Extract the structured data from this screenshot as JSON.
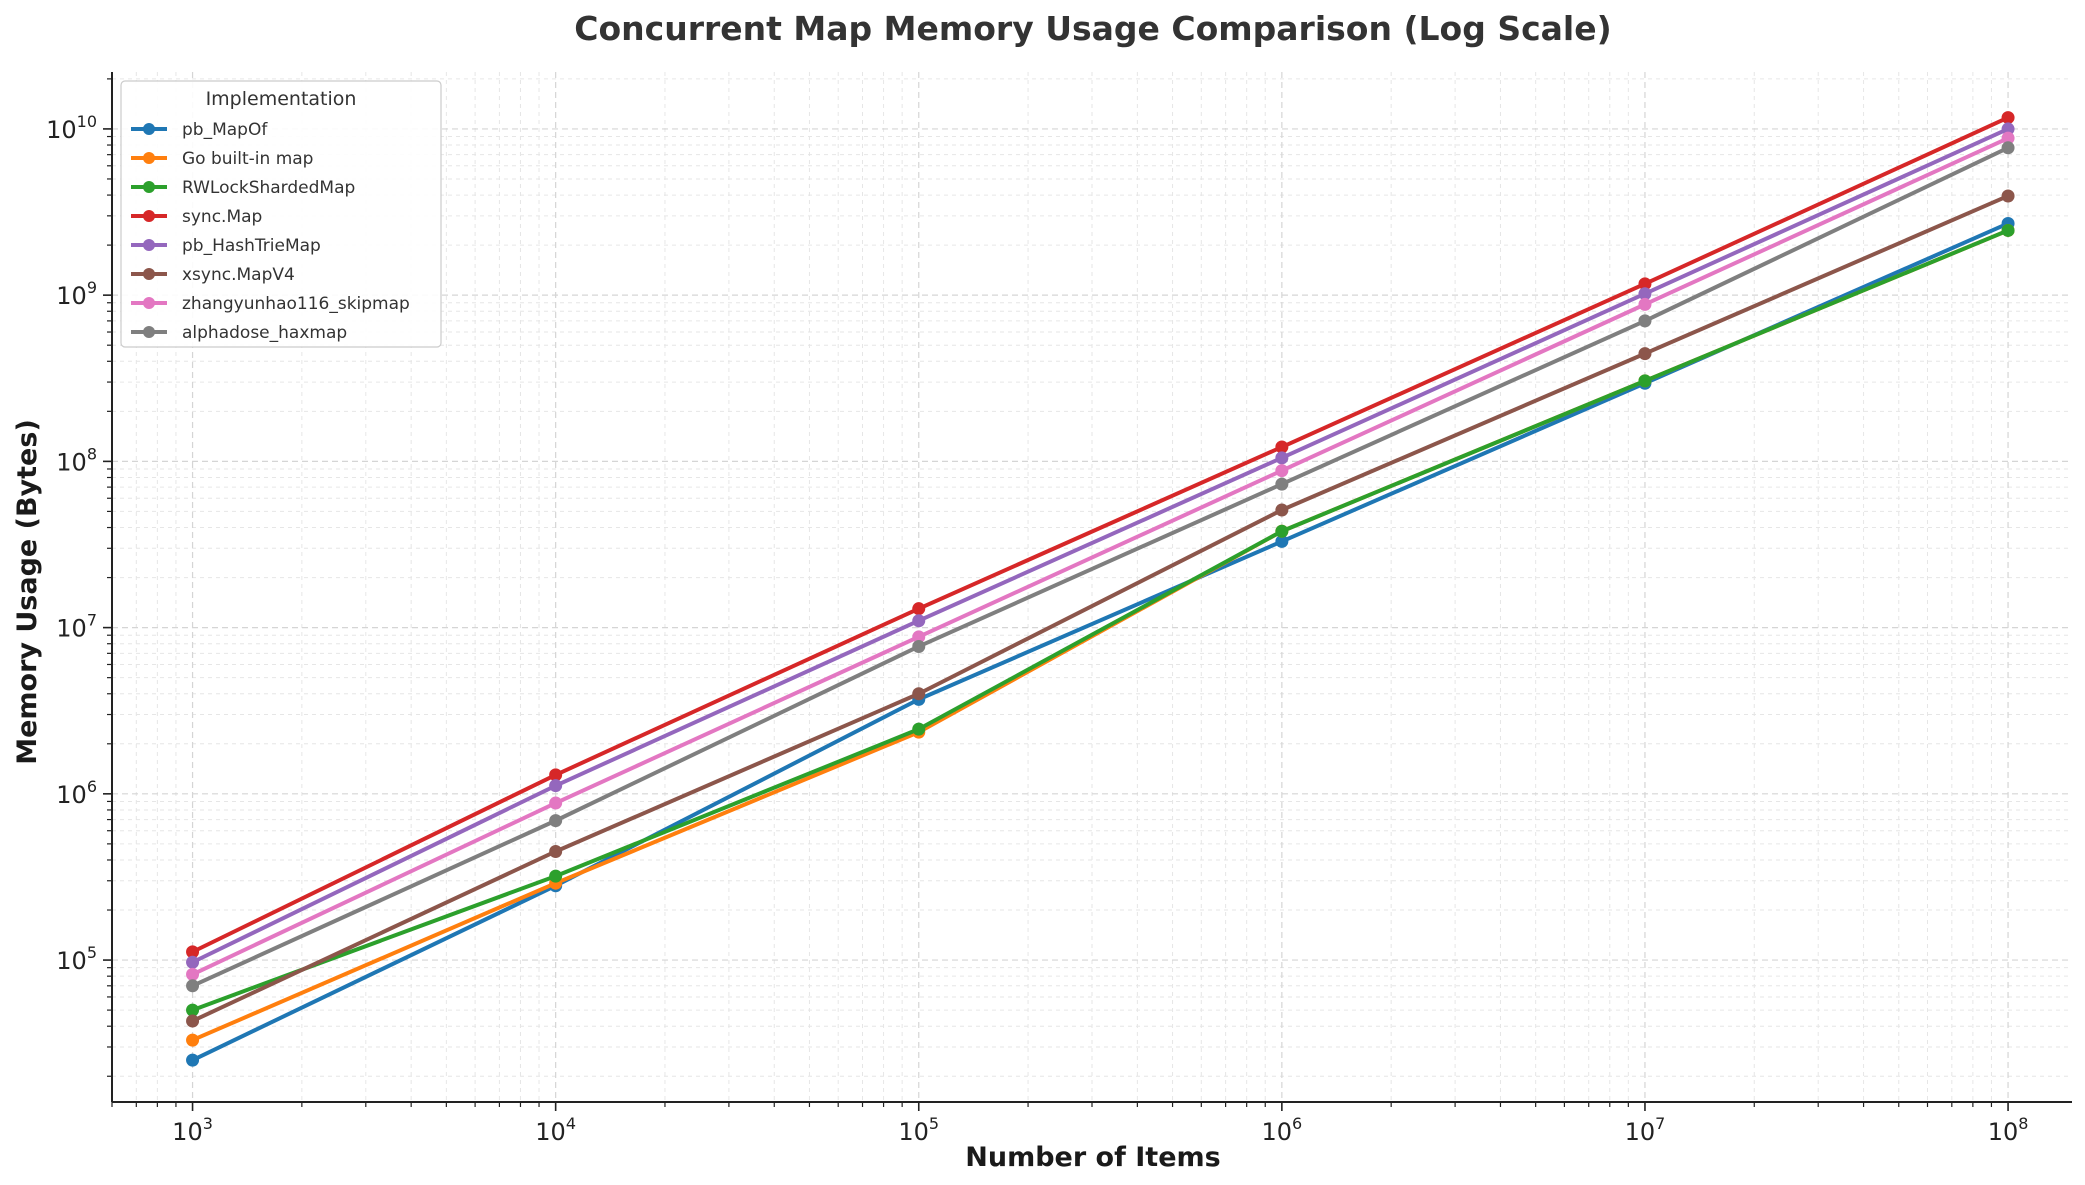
{
  "chart_data": {
    "type": "line",
    "title": "Concurrent Map Memory Usage Comparison (Log Scale)",
    "xlabel": "Number of Items",
    "ylabel": "Memory Usage (Bytes)",
    "x_scale": "log",
    "y_scale": "log",
    "xlim": [
      600,
      150000000
    ],
    "ylim": [
      14000,
      22000000000
    ],
    "x": [
      1000,
      10000,
      100000,
      1000000,
      10000000,
      100000000
    ],
    "x_ticks": [
      {
        "value": 1000,
        "base": "10",
        "exp": "3"
      },
      {
        "value": 10000,
        "base": "10",
        "exp": "4"
      },
      {
        "value": 100000,
        "base": "10",
        "exp": "5"
      },
      {
        "value": 1000000,
        "base": "10",
        "exp": "6"
      },
      {
        "value": 10000000,
        "base": "10",
        "exp": "7"
      },
      {
        "value": 100000000,
        "base": "10",
        "exp": "8"
      }
    ],
    "y_ticks": [
      {
        "value": 100000,
        "base": "10",
        "exp": "5"
      },
      {
        "value": 1000000,
        "base": "10",
        "exp": "6"
      },
      {
        "value": 10000000,
        "base": "10",
        "exp": "7"
      },
      {
        "value": 100000000,
        "base": "10",
        "exp": "8"
      },
      {
        "value": 1000000000,
        "base": "10",
        "exp": "9"
      },
      {
        "value": 10000000000,
        "base": "10",
        "exp": "10"
      }
    ],
    "grid": true,
    "legend": {
      "title": "Implementation",
      "position": "top-left"
    },
    "series": [
      {
        "name": "pb_MapOf",
        "color": "#1f77b4",
        "values": [
          25000,
          280000,
          3700000,
          33000000,
          295000000,
          2700000000
        ]
      },
      {
        "name": "Go built-in map",
        "color": "#ff7f0e",
        "values": [
          33000,
          290000,
          2350000,
          38000000,
          305000000,
          2450000000
        ]
      },
      {
        "name": "RWLockShardedMap",
        "color": "#2ca02c",
        "values": [
          50000,
          320000,
          2450000,
          38000000,
          305000000,
          2450000000
        ]
      },
      {
        "name": "sync.Map",
        "color": "#d62728",
        "values": [
          112000,
          1300000,
          13000000,
          122000000,
          1170000000,
          11700000000
        ]
      },
      {
        "name": "pb_HashTrieMap",
        "color": "#9467bd",
        "values": [
          97000,
          1120000,
          11000000,
          105000000,
          1020000000,
          10000000000
        ]
      },
      {
        "name": "xsync.MapV4",
        "color": "#8c564b",
        "values": [
          43000,
          450000,
          4000000,
          51000000,
          445000000,
          3950000000
        ]
      },
      {
        "name": "zhangyunhao116_skipmap",
        "color": "#e377c2",
        "values": [
          82000,
          880000,
          8800000,
          88000000,
          880000000,
          8800000000
        ]
      },
      {
        "name": "alphadose_haxmap",
        "color": "#7f7f7f",
        "values": [
          70000,
          690000,
          7700000,
          73000000,
          700000000,
          7700000000
        ]
      }
    ]
  }
}
